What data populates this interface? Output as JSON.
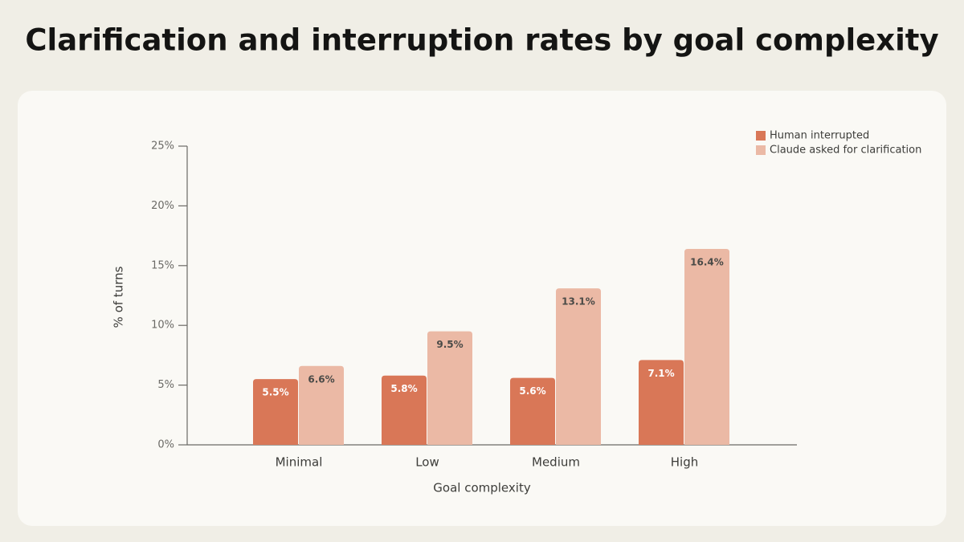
{
  "chart_data": {
    "type": "bar",
    "title": "Clarification and interruption rates by goal complexity",
    "xlabel": "Goal complexity",
    "ylabel": "% of turns",
    "categories": [
      "Minimal",
      "Low",
      "Medium",
      "High"
    ],
    "series": [
      {
        "name": "Human interrupted",
        "color": "#d97757",
        "values": [
          5.5,
          5.8,
          5.6,
          7.1
        ],
        "value_labels": [
          "5.5%",
          "5.8%",
          "5.6%",
          "7.1%"
        ]
      },
      {
        "name": "Claude asked for clarification",
        "color": "#ebb9a5",
        "values": [
          6.6,
          9.5,
          13.1,
          16.4
        ],
        "value_labels": [
          "6.6%",
          "9.5%",
          "13.1%",
          "16.4%"
        ]
      }
    ],
    "ylim": [
      0,
      25
    ],
    "yticks": [
      {
        "value": 0,
        "label": "0%"
      },
      {
        "value": 5,
        "label": "5%"
      },
      {
        "value": 10,
        "label": "10%"
      },
      {
        "value": 15,
        "label": "15%"
      },
      {
        "value": 20,
        "label": "20%"
      },
      {
        "value": 25,
        "label": "25%"
      }
    ],
    "legend": "top-right"
  }
}
